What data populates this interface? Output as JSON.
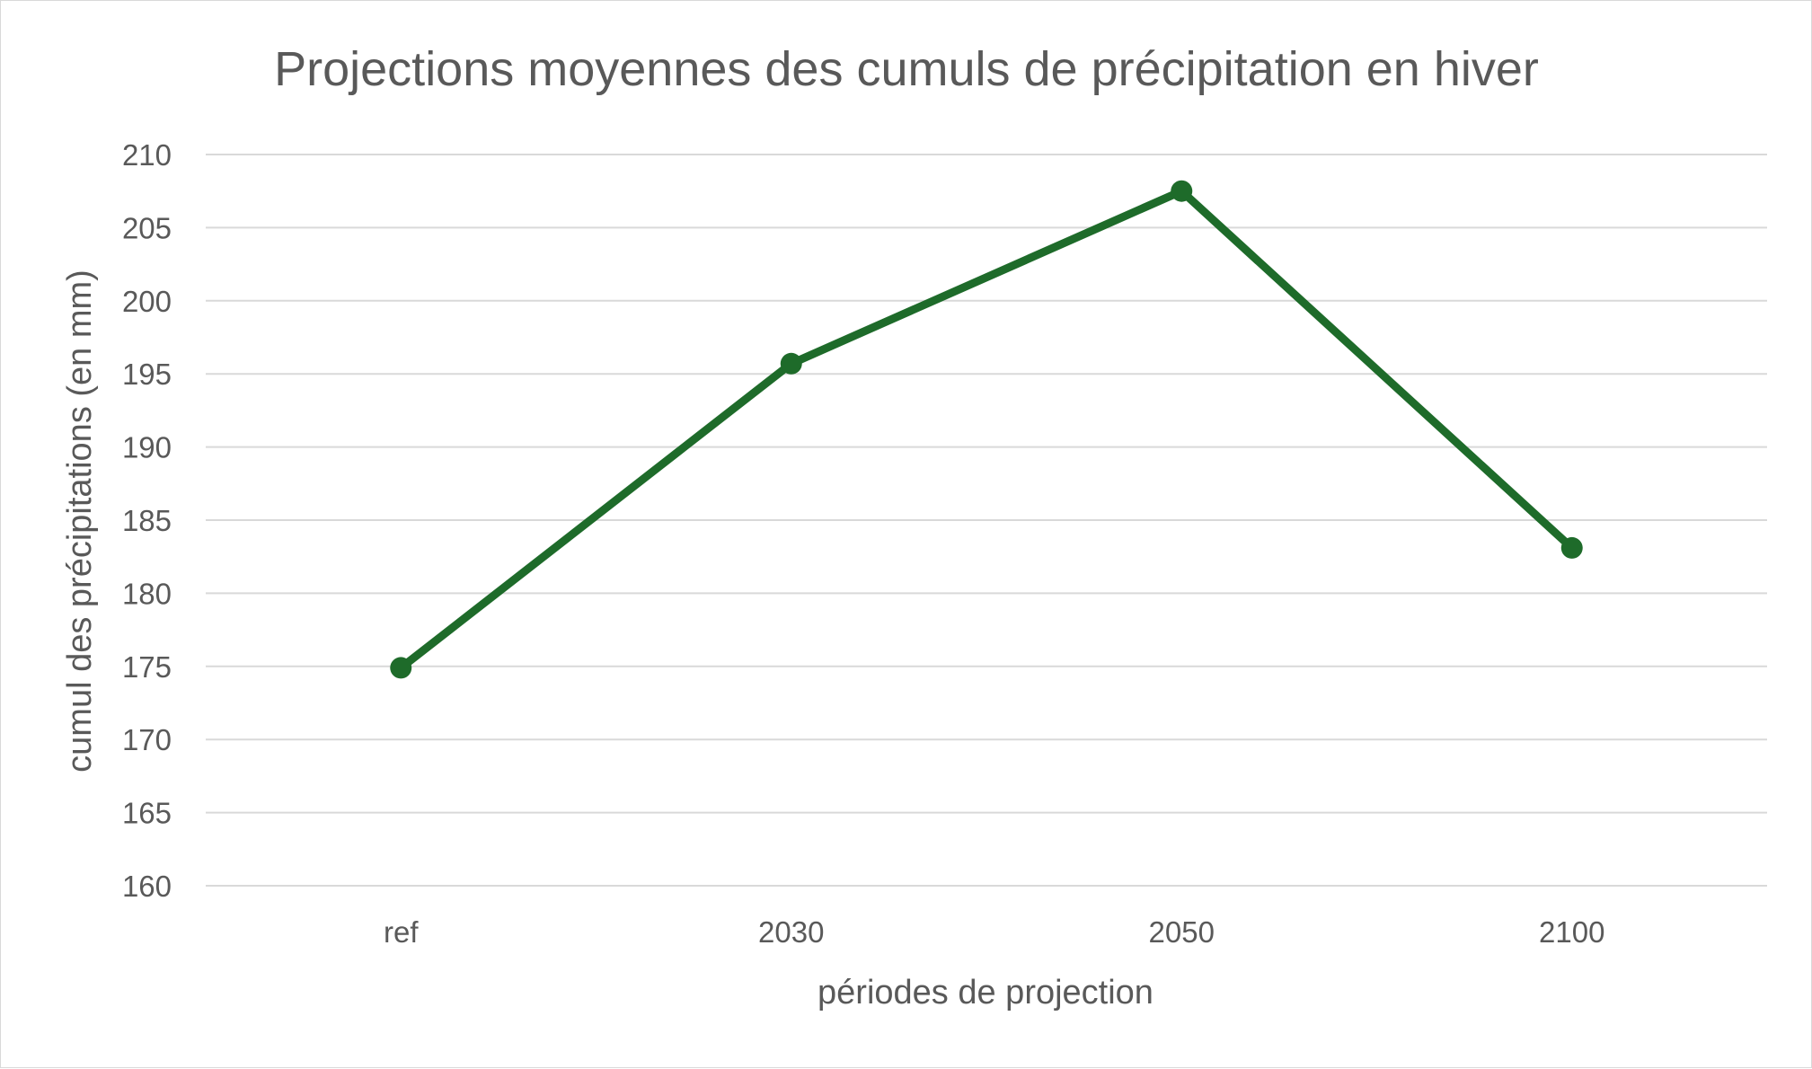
{
  "chart_data": {
    "type": "line",
    "title": "Projections moyennes des cumuls de précipitation en hiver",
    "xlabel": "périodes de projection",
    "ylabel": "cumul des précipitations (en mm)",
    "categories": [
      "ref",
      "2030",
      "2050",
      "2100"
    ],
    "series": [
      {
        "values": [
          174.9,
          195.7,
          207.5,
          183.1
        ],
        "color": "#1e6b2a"
      }
    ],
    "ylim": [
      160,
      210
    ],
    "yticks": [
      160,
      165,
      170,
      175,
      180,
      185,
      190,
      195,
      200,
      205,
      210
    ],
    "grid": true,
    "legend": "none"
  }
}
